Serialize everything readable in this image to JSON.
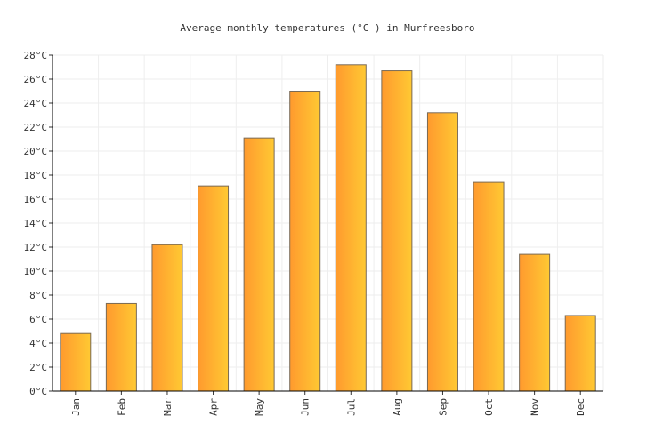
{
  "chart_data": {
    "type": "bar",
    "title": "Average monthly temperatures (°C ) in Murfreesboro",
    "xlabel": "",
    "ylabel": "",
    "categories": [
      "Jan",
      "Feb",
      "Mar",
      "Apr",
      "May",
      "Jun",
      "Jul",
      "Aug",
      "Sep",
      "Oct",
      "Nov",
      "Dec"
    ],
    "values": [
      4.8,
      7.3,
      12.2,
      17.1,
      21.1,
      25.0,
      27.2,
      26.7,
      23.2,
      17.4,
      11.4,
      6.3
    ],
    "ylim": [
      0,
      28
    ],
    "y_ticks": [
      "0°C",
      "2°C",
      "4°C",
      "6°C",
      "8°C",
      "10°C",
      "12°C",
      "14°C",
      "16°C",
      "18°C",
      "20°C",
      "22°C",
      "24°C",
      "26°C",
      "28°C"
    ],
    "grid": true,
    "legend": "none",
    "colors": {
      "bar_start": "#ff9a2e",
      "bar_end": "#ffc933",
      "bar_stroke": "#7a6a55",
      "grid": "#eeeeee",
      "axis": "#000000"
    }
  }
}
